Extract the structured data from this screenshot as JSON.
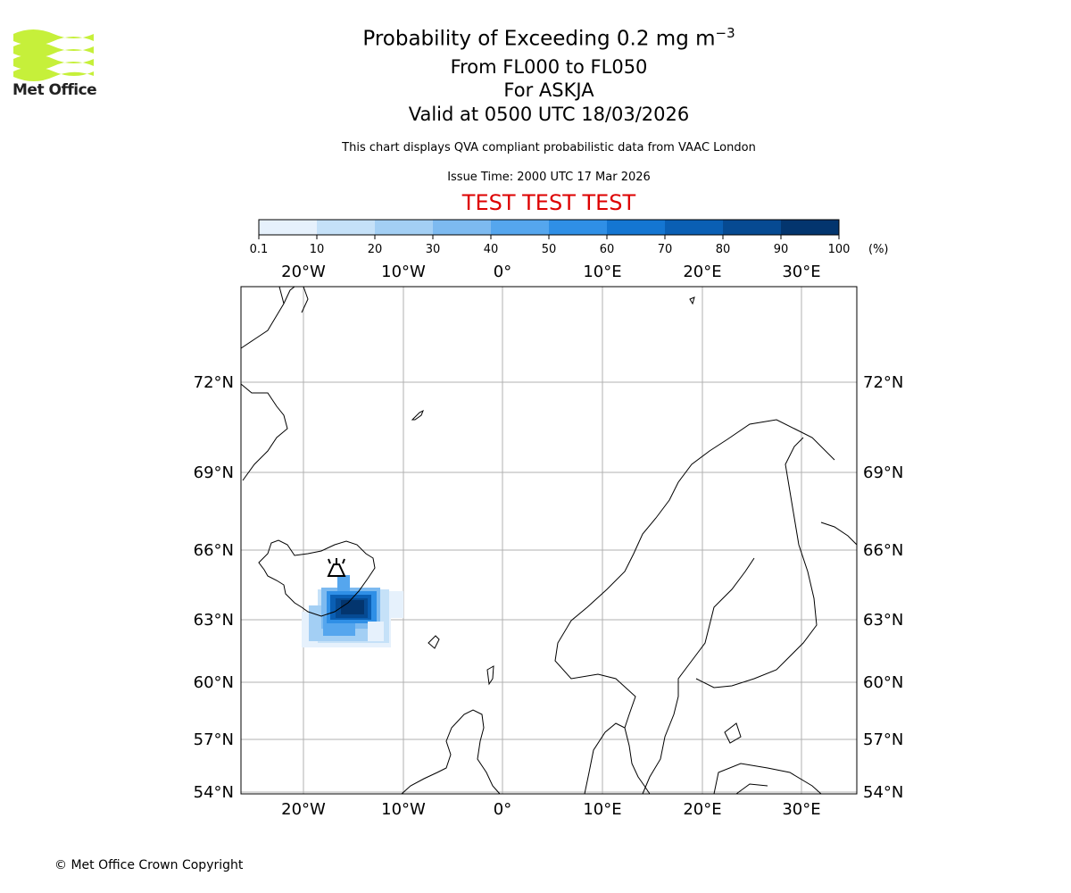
{
  "logo": {
    "text": "Met Office",
    "color": "#c6f03a"
  },
  "titles": {
    "line1_main": "Probability of Exceeding 0.2 mg m",
    "line1_sup": "−3",
    "line2": "From FL000 to FL050",
    "line3": "For ASKJA",
    "line4": "Valid at 0500 UTC 18/03/2026"
  },
  "subtitle": "This chart displays QVA compliant probabilistic data from VAAC London",
  "issue_time": "Issue Time: 2000 UTC 17 Mar 2026",
  "test_banner": {
    "text": "TEST TEST TEST",
    "color": "#dd0000"
  },
  "colorbar": {
    "ticks": [
      "0.1",
      "10",
      "20",
      "30",
      "40",
      "50",
      "60",
      "70",
      "80",
      "90",
      "100"
    ],
    "unit": "(%)",
    "colors": [
      "#e6f1fc",
      "#c5e1f8",
      "#a3cff4",
      "#7dbaf0",
      "#55a6ee",
      "#2f8fe6",
      "#1476d2",
      "#0a5fb4",
      "#064a92",
      "#03356e",
      "#021f44"
    ]
  },
  "map": {
    "lon_labels": [
      "20°W",
      "10°W",
      "0°",
      "10°E",
      "20°E",
      "30°E"
    ],
    "lat_labels": [
      "72°N",
      "69°N",
      "66°N",
      "63°N",
      "60°N",
      "57°N",
      "54°N"
    ],
    "volcano": "ASKJA"
  },
  "copyright": "© Met Office Crown Copyright"
}
